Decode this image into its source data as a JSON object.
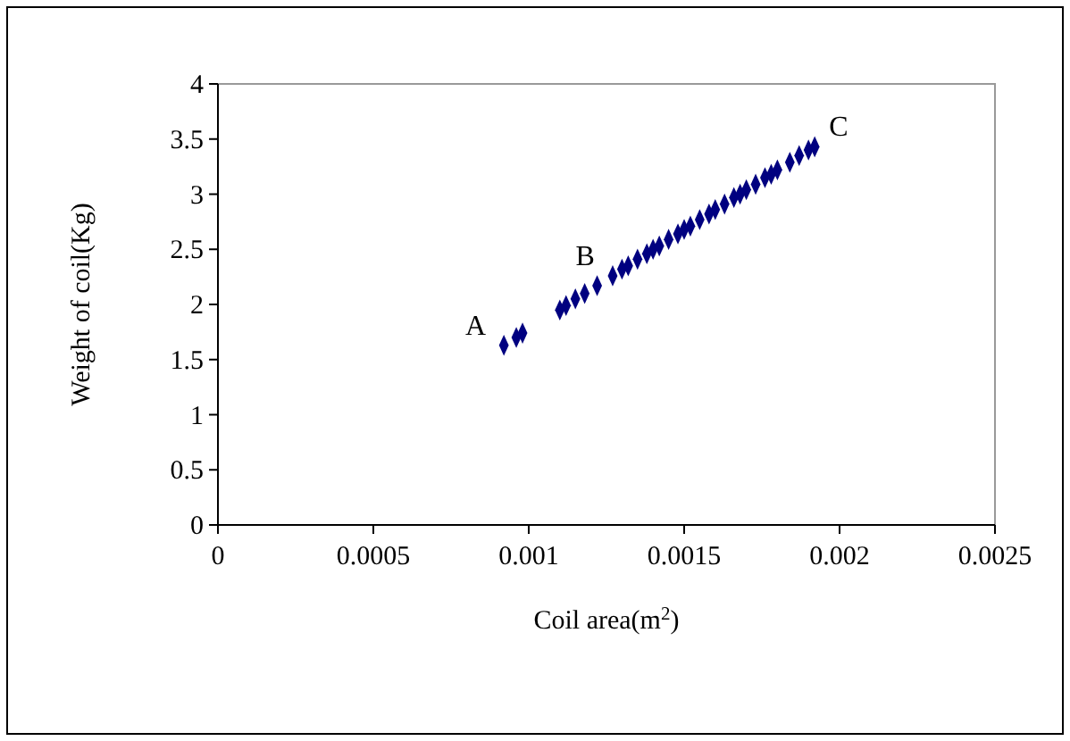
{
  "chart_data": {
    "type": "scatter",
    "xlabel": "Coil area(m$^{2}$)",
    "ylabel": "Weight of coil(Kg)",
    "marker": "diamond",
    "grid": false,
    "xlim": [
      0,
      0.0025
    ],
    "xticks": [
      0,
      0.0005,
      0.001,
      0.0015,
      0.002,
      0.0025
    ],
    "ylim": [
      0,
      4
    ],
    "yticks": [
      0,
      0.5,
      1,
      1.5,
      2,
      2.5,
      3,
      3.5,
      4
    ],
    "series": [
      {
        "color": "#000080",
        "x": [
          0.00092,
          0.00096,
          0.00098,
          0.0011,
          0.00112,
          0.00115,
          0.00118,
          0.00122,
          0.00127,
          0.0013,
          0.00132,
          0.00135,
          0.00138,
          0.0014,
          0.00142,
          0.00145,
          0.00148,
          0.0015,
          0.00152,
          0.00155,
          0.00158,
          0.0016,
          0.00163,
          0.00166,
          0.00168,
          0.0017,
          0.00173,
          0.00176,
          0.00178,
          0.0018,
          0.00184,
          0.00187,
          0.0019,
          0.00192
        ],
        "values": [
          1.63,
          1.7,
          1.74,
          1.95,
          1.99,
          2.05,
          2.1,
          2.17,
          2.26,
          2.32,
          2.35,
          2.41,
          2.46,
          2.5,
          2.53,
          2.59,
          2.64,
          2.68,
          2.71,
          2.77,
          2.82,
          2.86,
          2.91,
          2.97,
          3.0,
          3.04,
          3.09,
          3.15,
          3.18,
          3.22,
          3.29,
          3.35,
          3.4,
          3.43
        ]
      }
    ],
    "annotations": [
      {
        "text": "A",
        "x": 0.00092,
        "y": 1.63
      },
      {
        "text": "B",
        "x": 0.00127,
        "y": 2.26
      },
      {
        "text": "C",
        "x": 0.00192,
        "y": 3.43
      }
    ]
  }
}
